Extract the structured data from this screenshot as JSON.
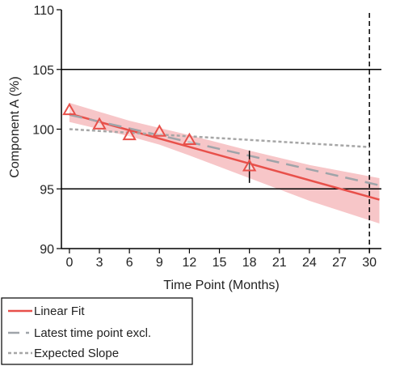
{
  "chart_data": {
    "type": "line",
    "xlabel": "Time Point (Months)",
    "ylabel": "Component A (%)",
    "xlim": [
      -0.8,
      31.2
    ],
    "ylim": [
      90,
      110
    ],
    "x_ticks": [
      0,
      3,
      6,
      9,
      12,
      15,
      18,
      21,
      24,
      27,
      30
    ],
    "y_ticks": [
      90,
      95,
      100,
      105,
      110
    ],
    "grid": false,
    "legend_position": "bottom-left, below plot",
    "reference_lines": {
      "horizontal": [
        105,
        95
      ],
      "vertical_dashed": [
        30
      ]
    },
    "points": {
      "marker": "triangle",
      "color": "#e8504a",
      "x": [
        0,
        3,
        6,
        9,
        12,
        18
      ],
      "y": [
        101.6,
        100.4,
        99.5,
        99.8,
        99.1,
        96.9
      ],
      "error_bar": {
        "x": 18,
        "low": 95.5,
        "high": 98.2
      }
    },
    "series": [
      {
        "name": "Linear Fit",
        "style": "solid",
        "color": "#e8504a",
        "x": [
          0,
          31
        ],
        "y": [
          101.3,
          94.1
        ],
        "confidence_band": {
          "x": [
            0,
            6,
            9,
            12,
            18,
            24,
            31
          ],
          "lower": [
            100.6,
            99.4,
            98.7,
            97.8,
            95.9,
            94.0,
            92.1
          ],
          "upper": [
            102.2,
            100.7,
            100.1,
            99.5,
            98.2,
            97.0,
            95.9
          ]
        }
      },
      {
        "name": "Latest time point excl.",
        "style": "dashed",
        "color": "#9fa4a9",
        "x": [
          0,
          31
        ],
        "y": [
          101.2,
          95.3
        ]
      },
      {
        "name": "Expected Slope",
        "style": "dotted",
        "color": "#a6a6a6",
        "x": [
          0,
          30
        ],
        "y": [
          100.0,
          98.5
        ]
      }
    ],
    "colors": {
      "band": "#f7c6c8",
      "axis": "#000000",
      "text": "#222222"
    }
  }
}
